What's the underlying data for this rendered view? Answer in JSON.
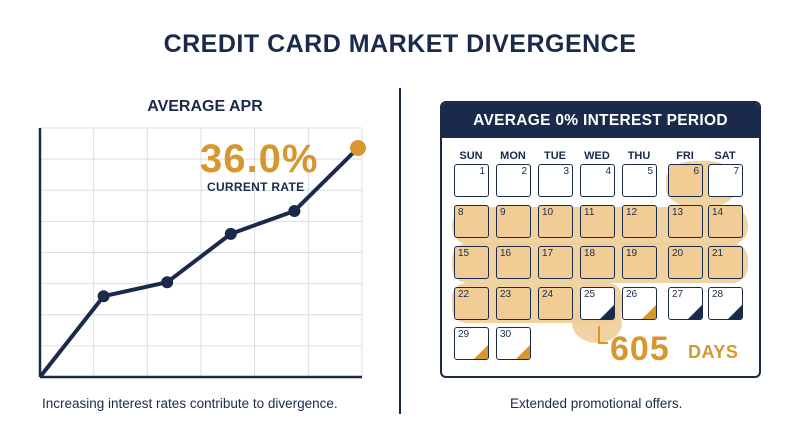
{
  "title": "CREDIT CARD MARKET DIVERGENCE",
  "left_panel": {
    "subtitle": "AVERAGE APR",
    "current_rate_value": "36.0%",
    "current_rate_label": "CURRENT RATE",
    "caption": "Increasing interest rates contribute to divergence."
  },
  "right_panel": {
    "calendar_title": "AVERAGE 0% INTEREST PERIOD",
    "weekdays": [
      "SUN",
      "MON",
      "TUE",
      "WED",
      "THU",
      "FRI",
      "SAT"
    ],
    "days": [
      "1",
      "2",
      "3",
      "4",
      "5",
      "6",
      "7",
      "8",
      "9",
      "10",
      "11",
      "12",
      "13",
      "14",
      "15",
      "16",
      "17",
      "18",
      "19",
      "20",
      "21",
      "22",
      "23",
      "24",
      "25",
      "26",
      "27",
      "28",
      "29",
      "30"
    ],
    "highlighted_days": [
      6,
      8,
      9,
      10,
      11,
      12,
      13,
      14,
      15,
      16,
      17,
      18,
      19,
      20,
      21,
      22,
      23,
      24
    ],
    "days_value": "605",
    "days_unit": "DAYS",
    "caption": "Extended promotional offers."
  },
  "chart_data": {
    "type": "line",
    "title": "AVERAGE APR",
    "series": [
      {
        "x": [
          0,
          1,
          2,
          3,
          4,
          5
        ],
        "values": [
          0,
          12.7,
          14.9,
          22.5,
          26.1,
          36.0
        ]
      }
    ],
    "highlight_value": "36.0%",
    "grid": true,
    "colors": {
      "line": "#1b2a4a",
      "highlight": "#d7962e"
    }
  },
  "colors": {
    "navy": "#1b2a4a",
    "gold": "#d7962e",
    "highlight_fill": "#f1cd95"
  }
}
